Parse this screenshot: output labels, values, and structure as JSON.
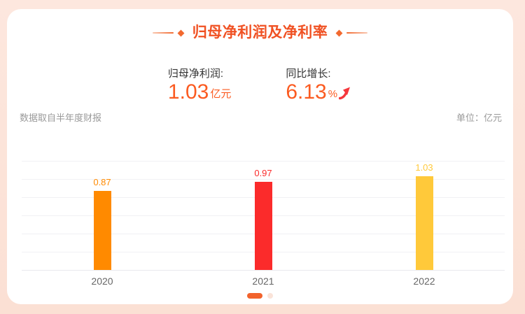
{
  "title": {
    "text": "归母净利润及净利率"
  },
  "stats": [
    {
      "label": "归母净利润:",
      "value": "1.03",
      "unit": "亿元"
    },
    {
      "label": "同比增长:",
      "value": "6.13",
      "unit": "%",
      "trend": "up"
    }
  ],
  "meta": {
    "source_note": "数据取自半年度财报",
    "unit_label": "单位：亿元"
  },
  "chart_data": {
    "type": "bar",
    "title": "归母净利润及净利率",
    "categories": [
      "2020",
      "2021",
      "2022"
    ],
    "values": [
      0.87,
      0.97,
      1.03
    ],
    "value_labels": [
      "0.87",
      "0.97",
      "1.03"
    ],
    "bar_colors": [
      "#FF8A00",
      "#FB2B2B",
      "#FFC93A"
    ],
    "xlabel": "",
    "ylabel": "",
    "unit": "亿元",
    "ylim": [
      0,
      1.2
    ],
    "grid": true,
    "gridline_count": 7,
    "legend_position": "none"
  },
  "pagination": {
    "total": 2,
    "active_index": 0
  },
  "colors": {
    "accent_title": "#F05123",
    "stat_value_orange": "#FB5B21",
    "trend_red": "#F5373C",
    "frame_pink": "#FBE2D8",
    "note_gray": "#999999"
  }
}
